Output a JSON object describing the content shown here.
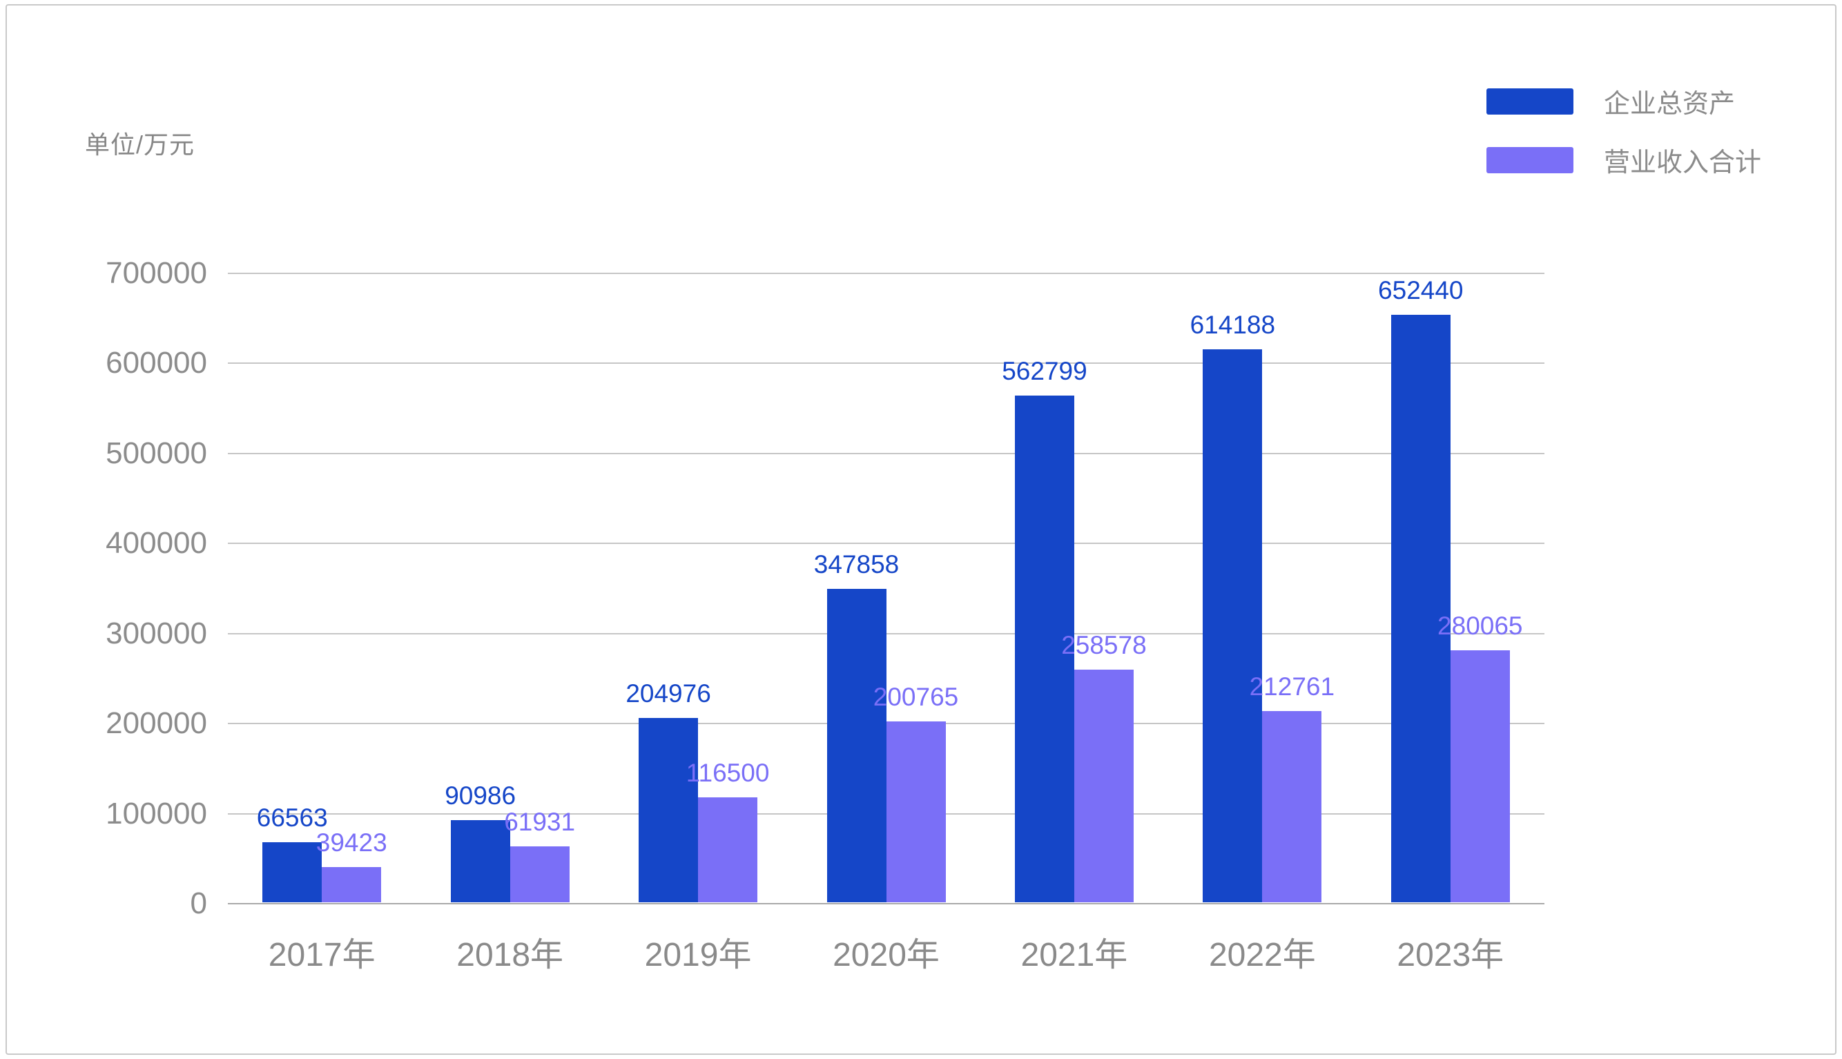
{
  "unit_label": "单位/万元",
  "legend": {
    "position": "top-right",
    "items": [
      {
        "label": "企业总资产",
        "color": "#1546c8"
      },
      {
        "label": "营业收入合计",
        "color": "#7a6ff7"
      }
    ]
  },
  "chart_data": {
    "type": "bar",
    "title": "",
    "xlabel": "",
    "ylabel": "单位/万元",
    "categories": [
      "2017年",
      "2018年",
      "2019年",
      "2020年",
      "2021年",
      "2022年",
      "2023年"
    ],
    "series": [
      {
        "name": "企业总资产",
        "key": "total-assets",
        "color": "#1546c8",
        "values": [
          66563,
          90986,
          204976,
          347858,
          562799,
          614188,
          652440
        ]
      },
      {
        "name": "营业收入合计",
        "key": "operating-revenue",
        "color": "#7a6ff7",
        "values": [
          39423,
          61931,
          116500,
          200765,
          258578,
          212761,
          280065
        ]
      }
    ],
    "ylim": [
      0,
      700000
    ],
    "yticks": [
      0,
      100000,
      200000,
      300000,
      400000,
      500000,
      600000,
      700000
    ],
    "grid": true,
    "legend_position": "top-right",
    "colors": {
      "gridline": "#c6c6c6",
      "baseline": "#a9a9a9",
      "axis_text": "#8c8c8c",
      "page_border": "#c9c9c9"
    }
  }
}
